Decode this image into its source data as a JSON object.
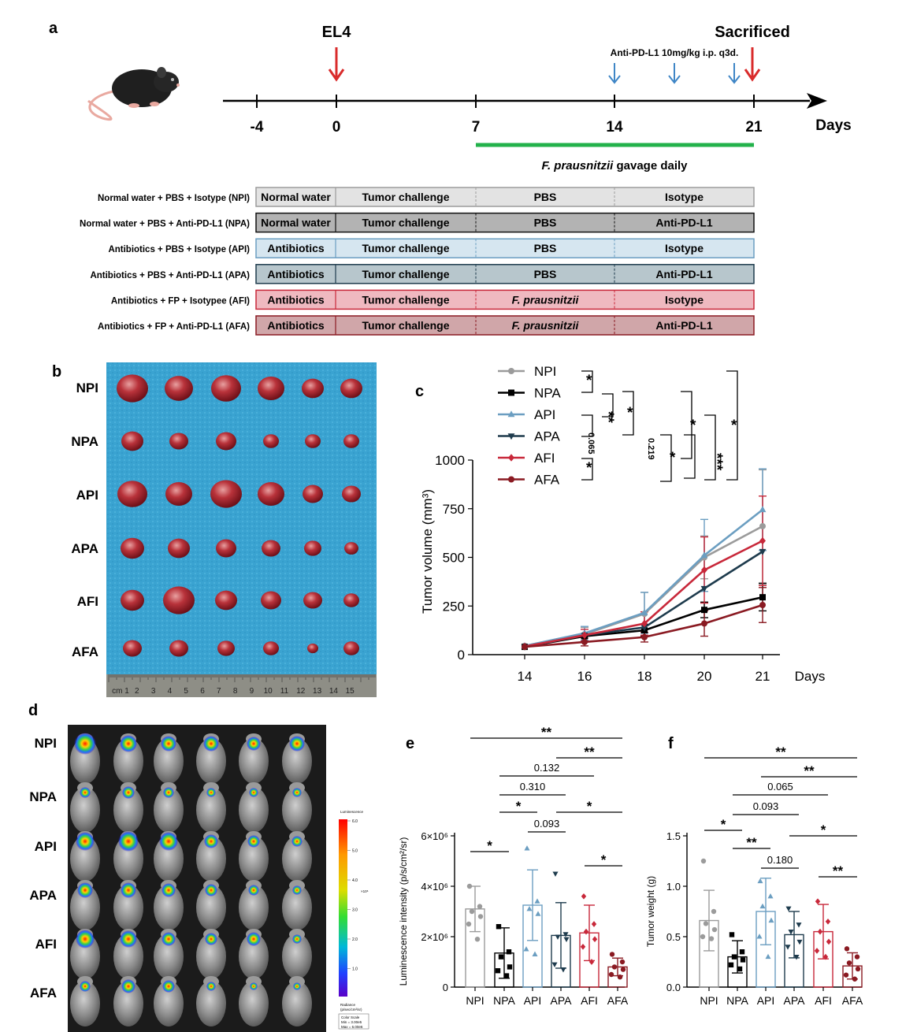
{
  "panel_a": {
    "letter": "a",
    "el4_label": "EL4",
    "sacrificed_label": "Sacrificed",
    "treatment_label": "Anti-PD-L1 10mg/kg i.p. q3d.",
    "ticks": [
      "-4",
      "0",
      "7",
      "14",
      "21"
    ],
    "days_label": "Days",
    "gavage_label_italic": "F. prausnitzii",
    "gavage_label_rest": " gavage daily",
    "gavage_color": "#23b24b",
    "groups": [
      {
        "name": "Normal water + PBS + Isotype (NPI)",
        "pre": "Normal water",
        "challenge": "Tumor challenge",
        "mid": "PBS",
        "mid_italic": false,
        "post": "Isotype",
        "fill": "#e3e3e3",
        "stroke": "#9c9c9c"
      },
      {
        "name": "Normal water + PBS + Anti-PD-L1 (NPA)",
        "pre": "Normal water",
        "challenge": "Tumor challenge",
        "mid": "PBS",
        "mid_italic": false,
        "post": "Anti-PD-L1",
        "fill": "#b3b3b3",
        "stroke": "#111111"
      },
      {
        "name": "Antibiotics + PBS + Isotype (API)",
        "pre": "Antibiotics",
        "challenge": "Tumor challenge",
        "mid": "PBS",
        "mid_italic": false,
        "post": "Isotype",
        "fill": "#d6e6f0",
        "stroke": "#6b9ec1"
      },
      {
        "name": "Antibiotics + PBS + Anti-PD-L1 (APA)",
        "pre": "Antibiotics",
        "challenge": "Tumor challenge",
        "mid": "PBS",
        "mid_italic": false,
        "post": "Anti-PD-L1",
        "fill": "#b7c6cc",
        "stroke": "#1e3b4d"
      },
      {
        "name": "Antibiotics + FP + Isotypee (AFI)",
        "pre": "Antibiotics",
        "challenge": "Tumor challenge",
        "mid": "F. prausnitzii",
        "mid_italic": true,
        "post": "Isotype",
        "fill": "#efb9c0",
        "stroke": "#c8283a"
      },
      {
        "name": "Antibiotics + FP + Anti-PD-L1 (AFA)",
        "pre": "Antibiotics",
        "challenge": "Tumor challenge",
        "mid": "F. prausnitzii",
        "mid_italic": true,
        "post": "Anti-PD-L1",
        "fill": "#d0a6a9",
        "stroke": "#8a1a22"
      }
    ]
  },
  "panel_b": {
    "letter": "b",
    "rows": [
      "NPI",
      "NPA",
      "API",
      "APA",
      "AFI",
      "AFA"
    ],
    "ruler_numbers": [
      "cm 1",
      "2",
      "3",
      "4",
      "5",
      "6",
      "7",
      "8",
      "9",
      "10",
      "11",
      "12",
      "13",
      "14",
      "15"
    ],
    "background_color": "#39a2d0"
  },
  "panel_c": {
    "letter": "c"
  },
  "panel_d": {
    "letter": "d",
    "rows": [
      "NPI",
      "NPA",
      "API",
      "APA",
      "AFI",
      "AFA"
    ],
    "colorbar_title": "Luminescence",
    "colorbar_ticks": [
      "6.0",
      "5.0",
      "4.0",
      "3.0",
      "2.0",
      "1.0"
    ],
    "colorbar_exponent": "×10⁶",
    "units_text": [
      "Radiance",
      "(p/sec/cm²/sr)"
    ],
    "scale_text": [
      "Color Scale",
      "Min = 3.00e5",
      "Max = 6.00e6"
    ]
  },
  "panel_e": {
    "letter": "e"
  },
  "panel_f": {
    "letter": "f"
  },
  "colors": {
    "NPI": "#9b9b9b",
    "NPA": "#000000",
    "API": "#6b9ec1",
    "APA": "#1e3b4d",
    "AFI": "#c8283a",
    "AFA": "#8a1a22"
  },
  "chart_data": [
    {
      "id": "c",
      "type": "line",
      "title": "",
      "xlabel": "Days",
      "ylabel": "Tumor volume (mm³)",
      "x": [
        "14",
        "16",
        "18",
        "20",
        "21"
      ],
      "ylim": [
        0,
        1000
      ],
      "yticks": [
        "0",
        "250",
        "500",
        "750",
        "1000"
      ],
      "legend_placement": "top-left",
      "series": [
        {
          "name": "NPI",
          "marker": "circle",
          "values": [
            45,
            105,
            210,
            500,
            660
          ],
          "err": [
            0,
            35,
            110,
            110,
            290
          ]
        },
        {
          "name": "NPA",
          "marker": "square",
          "values": [
            40,
            95,
            125,
            230,
            295
          ],
          "err": [
            0,
            0,
            30,
            40,
            70
          ]
        },
        {
          "name": "API",
          "marker": "triangle-up",
          "values": [
            45,
            110,
            215,
            510,
            745
          ],
          "err": [
            0,
            35,
            105,
            185,
            210
          ]
        },
        {
          "name": "APA",
          "marker": "triangle-down",
          "values": [
            40,
            100,
            140,
            340,
            530
          ],
          "err": [
            0,
            0,
            0,
            0,
            0
          ]
        },
        {
          "name": "AFI",
          "marker": "diamond",
          "values": [
            42,
            100,
            160,
            435,
            585
          ],
          "err": [
            0,
            30,
            60,
            170,
            230
          ]
        },
        {
          "name": "AFA",
          "marker": "circle",
          "values": [
            40,
            65,
            90,
            160,
            255
          ],
          "err": [
            0,
            20,
            25,
            65,
            90
          ]
        }
      ],
      "significance": [
        {
          "label": "*"
        },
        {
          "label": "**"
        },
        {
          "label": "0.065"
        },
        {
          "label": "*"
        },
        {
          "label": "0.219"
        },
        {
          "label": "*"
        },
        {
          "label": "*"
        },
        {
          "label": "***"
        },
        {
          "label": "*"
        },
        {
          "label": "*"
        }
      ]
    },
    {
      "id": "e",
      "type": "bar",
      "title": "",
      "xlabel": "",
      "ylabel": "Luminescence intensity (p/s/cm²/sr)",
      "categories": [
        "NPI",
        "NPA",
        "API",
        "APA",
        "AFI",
        "AFA"
      ],
      "ylim": [
        0,
        6000000
      ],
      "yticks": [
        "0",
        "2×10⁶",
        "4×10⁶",
        "6×10⁶"
      ],
      "values": [
        3100000,
        1350000,
        3250000,
        2050000,
        2150000,
        800000
      ],
      "err": [
        900000,
        1000000,
        1400000,
        1300000,
        1100000,
        350000
      ],
      "points": [
        [
          4000000,
          3200000,
          3000000,
          2800000,
          2500000,
          1900000
        ],
        [
          2400000,
          1400000,
          1200000,
          800000,
          650000,
          450000
        ],
        [
          5500000,
          3400000,
          3100000,
          2900000,
          1500000,
          1300000
        ],
        [
          4500000,
          2100000,
          2000000,
          1900000,
          900000,
          700000
        ],
        [
          3600000,
          2500000,
          2200000,
          1900000,
          1600000,
          1000000
        ],
        [
          1300000,
          1000000,
          800000,
          700000,
          500000,
          400000
        ]
      ],
      "comparisons": [
        {
          "from": 0,
          "to": 5,
          "label": "**"
        },
        {
          "from": 3,
          "to": 5,
          "label": "**"
        },
        {
          "from": 1,
          "to": 4,
          "label": "0.132"
        },
        {
          "from": 1,
          "to": 3,
          "label": "0.310"
        },
        {
          "from": 1,
          "to": 2,
          "label": "*"
        },
        {
          "from": 3,
          "to": 5,
          "label": "*"
        },
        {
          "from": 2,
          "to": 3,
          "label": "0.093"
        },
        {
          "from": 4,
          "to": 5,
          "label": "*"
        },
        {
          "from": 0,
          "to": 1,
          "label": "*"
        }
      ]
    },
    {
      "id": "f",
      "type": "bar",
      "title": "",
      "xlabel": "",
      "ylabel": "Tumor weight (g)",
      "categories": [
        "NPI",
        "NPA",
        "API",
        "APA",
        "AFI",
        "AFA"
      ],
      "ylim": [
        0,
        1.5
      ],
      "yticks": [
        "0.0",
        "0.5",
        "1.0",
        "1.5"
      ],
      "values": [
        0.66,
        0.3,
        0.75,
        0.52,
        0.55,
        0.21
      ],
      "err": [
        0.3,
        0.16,
        0.33,
        0.23,
        0.27,
        0.13
      ],
      "points": [
        [
          1.25,
          0.75,
          0.63,
          0.57,
          0.5,
          0.48
        ],
        [
          0.52,
          0.35,
          0.3,
          0.27,
          0.22,
          0.18
        ],
        [
          1.05,
          0.9,
          0.8,
          0.66,
          0.5,
          0.3
        ],
        [
          0.78,
          0.62,
          0.55,
          0.45,
          0.4,
          0.3
        ],
        [
          0.85,
          0.65,
          0.55,
          0.45,
          0.36,
          0.3
        ],
        [
          0.38,
          0.3,
          0.24,
          0.18,
          0.12,
          0.08
        ]
      ],
      "comparisons": [
        {
          "from": 0,
          "to": 5,
          "label": "**"
        },
        {
          "from": 2,
          "to": 5,
          "label": "**"
        },
        {
          "from": 1,
          "to": 4,
          "label": "0.065"
        },
        {
          "from": 1,
          "to": 3,
          "label": "0.093"
        },
        {
          "from": 0,
          "to": 1,
          "label": "*"
        },
        {
          "from": 1,
          "to": 2,
          "label": "**"
        },
        {
          "from": 3,
          "to": 5,
          "label": "*"
        },
        {
          "from": 2,
          "to": 3,
          "label": "0.180"
        },
        {
          "from": 4,
          "to": 5,
          "label": "**"
        }
      ]
    }
  ]
}
